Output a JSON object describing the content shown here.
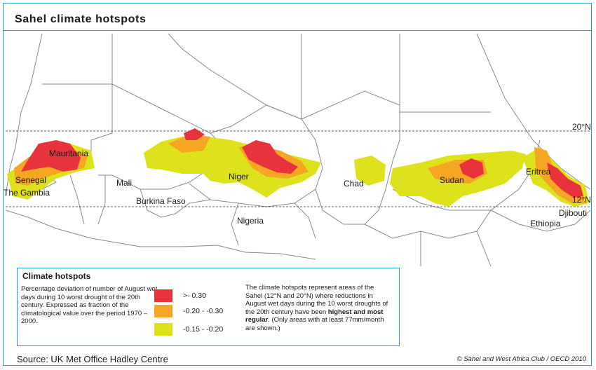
{
  "title": "Sahel climate hotspots",
  "latitude_labels": {
    "north": "20°N",
    "south": "12°N"
  },
  "countries": {
    "mauritania": "Mauritania",
    "senegal": "Senegal",
    "gambia": "The Gambia",
    "mali": "Mali",
    "burkina_faso": "Burkina Faso",
    "niger": "Niger",
    "nigeria": "Nigeria",
    "chad": "Chad",
    "sudan": "Sudan",
    "eritrea": "Eritrea",
    "djibouti": "Djibouti",
    "ethiopia": "Ethiopia"
  },
  "legend": {
    "title": "Climate hotspots",
    "description": "Percentage deviation of  number of August wet days during 10 worst drought of the 20th century. Expressed as fraction of the climatological value over the period 1970 – 2000.",
    "classes": [
      {
        "label": ">- 0.30",
        "color": "#e8323c"
      },
      {
        "label": "-0.20 - -0.30",
        "color": "#f5a623"
      },
      {
        "label": "-0.15 - -0.20",
        "color": "#dde21c"
      }
    ],
    "note_part1": "The climate hotspots represent areas of the Sahel (12°N and 20°N) where reductions in August wet days during the 10 worst droughts of the 20th century have been ",
    "note_bold": "highest and most regular",
    "note_part2": ". (Only areas with at least 77mm/month are shown.)"
  },
  "source": "Source: UK Met Office Hadley Centre",
  "copyright": "© Sahel and West Africa Club / OECD 2010",
  "colors": {
    "border": "#2b9bc8",
    "country_lines": "#8a8a8a"
  }
}
